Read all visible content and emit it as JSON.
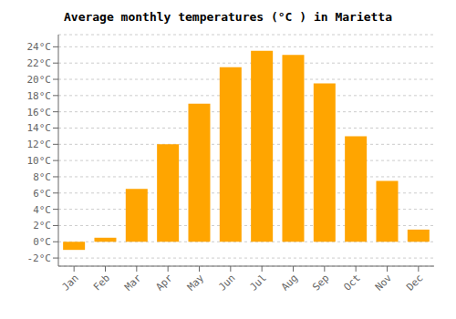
{
  "chart_data": {
    "type": "bar",
    "title": "Average monthly temperatures (°C ) in Marietta",
    "categories": [
      "Jan",
      "Feb",
      "Mar",
      "Apr",
      "May",
      "Jun",
      "Jul",
      "Aug",
      "Sep",
      "Oct",
      "Nov",
      "Dec"
    ],
    "values": [
      -1.0,
      0.5,
      6.5,
      12.0,
      17.0,
      21.5,
      23.5,
      23.0,
      19.5,
      13.0,
      7.5,
      1.5
    ],
    "color": "#FFA500",
    "ylim": [
      -3,
      25.5
    ],
    "yticks": [
      {
        "value": -2,
        "label": "-2°C"
      },
      {
        "value": 0,
        "label": "0°C"
      },
      {
        "value": 2,
        "label": "2°C"
      },
      {
        "value": 4,
        "label": "4°C"
      },
      {
        "value": 6,
        "label": "6°C"
      },
      {
        "value": 8,
        "label": "8°C"
      },
      {
        "value": 10,
        "label": "10°C"
      },
      {
        "value": 12,
        "label": "12°C"
      },
      {
        "value": 14,
        "label": "14°C"
      },
      {
        "value": 16,
        "label": "16°C"
      },
      {
        "value": 18,
        "label": "18°C"
      },
      {
        "value": 20,
        "label": "20°C"
      },
      {
        "value": 22,
        "label": "22°C"
      },
      {
        "value": 24,
        "label": "24°C"
      }
    ],
    "grid": true
  }
}
